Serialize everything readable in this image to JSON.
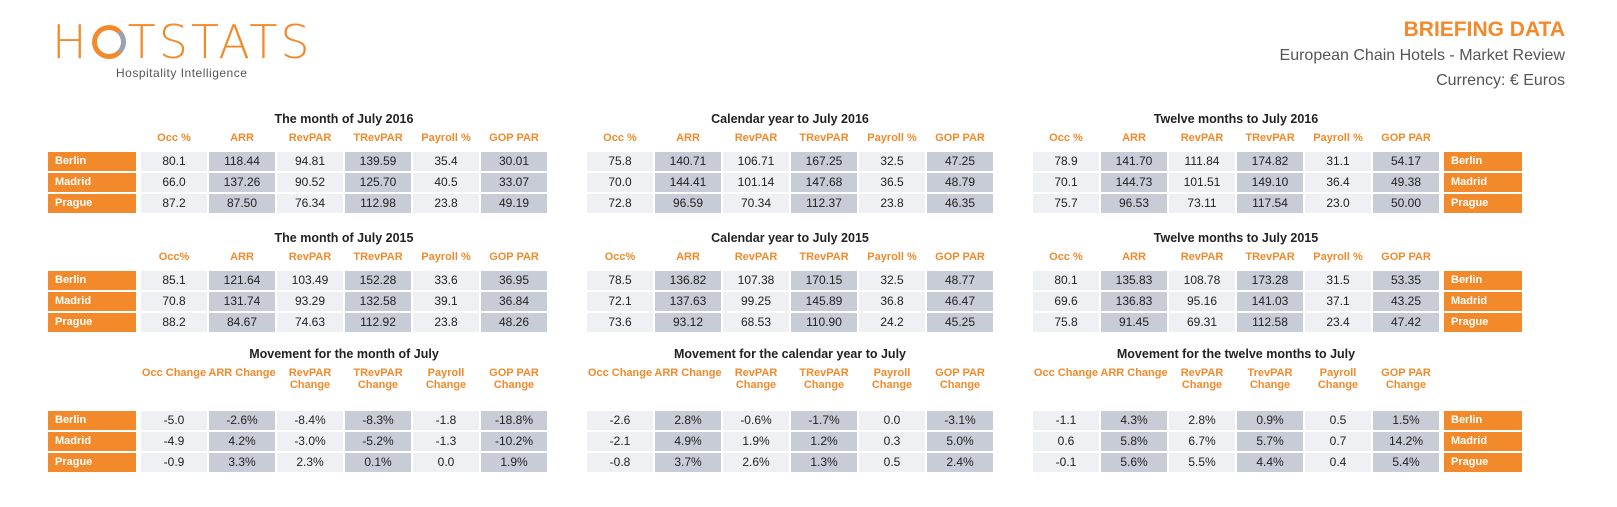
{
  "logo": {
    "name": "HOTSTATS",
    "tagline": "Hospitality Intelligence"
  },
  "header": {
    "title": "BRIEFING DATA",
    "subtitle": "European Chain Hotels - Market Review",
    "currency": "Currency: € Euros"
  },
  "colors": {
    "accent": "#f28a2b",
    "cell_light": "#eef0f4",
    "cell_dark": "#c7ccd6"
  },
  "groups": [
    {
      "tables": [
        {
          "title": "The month of July 2016",
          "columns": [
            "Occ %",
            "ARR",
            "RevPAR",
            "TRevPAR",
            "Payroll %",
            "GOP PAR"
          ],
          "row_labels": [
            "Berlin",
            "Madrid",
            "Prague"
          ],
          "rows": [
            [
              "80.1",
              "118.44",
              "94.81",
              "139.59",
              "35.4",
              "30.01"
            ],
            [
              "66.0",
              "137.26",
              "90.52",
              "125.70",
              "40.5",
              "33.07"
            ],
            [
              "87.2",
              "87.50",
              "76.34",
              "112.98",
              "23.8",
              "49.19"
            ]
          ]
        },
        {
          "title": "Calendar year to July 2016",
          "columns": [
            "Occ %",
            "ARR",
            "RevPAR",
            "TRevPAR",
            "Payroll %",
            "GOP PAR"
          ],
          "row_labels": [],
          "rows": [
            [
              "75.8",
              "140.71",
              "106.71",
              "167.25",
              "32.5",
              "47.25"
            ],
            [
              "70.0",
              "144.41",
              "101.14",
              "147.68",
              "36.5",
              "48.79"
            ],
            [
              "72.8",
              "96.59",
              "70.34",
              "112.37",
              "23.8",
              "46.35"
            ]
          ]
        },
        {
          "title": "Twelve months to July 2016",
          "columns": [
            "Occ %",
            "ARR",
            "RevPAR",
            "TRevPAR",
            "Payroll %",
            "GOP PAR"
          ],
          "row_labels": [
            "Berlin",
            "Madrid",
            "Prague"
          ],
          "rows": [
            [
              "78.9",
              "141.70",
              "111.84",
              "174.82",
              "31.1",
              "54.17"
            ],
            [
              "70.1",
              "144.73",
              "101.51",
              "149.10",
              "36.4",
              "49.38"
            ],
            [
              "75.7",
              "96.53",
              "73.11",
              "117.54",
              "23.0",
              "50.00"
            ]
          ]
        }
      ]
    },
    {
      "tables": [
        {
          "title": "The month of July 2015",
          "columns": [
            "Occ%",
            "ARR",
            "RevPAR",
            "TRevPAR",
            "Payroll %",
            "GOP PAR"
          ],
          "row_labels": [
            "Berlin",
            "Madrid",
            "Prague"
          ],
          "rows": [
            [
              "85.1",
              "121.64",
              "103.49",
              "152.28",
              "33.6",
              "36.95"
            ],
            [
              "70.8",
              "131.74",
              "93.29",
              "132.58",
              "39.1",
              "36.84"
            ],
            [
              "88.2",
              "84.67",
              "74.63",
              "112.92",
              "23.8",
              "48.26"
            ]
          ]
        },
        {
          "title": "Calendar year to July 2015",
          "columns": [
            "Occ%",
            "ARR",
            "RevPAR",
            "TRevPAR",
            "Payroll %",
            "GOP PAR"
          ],
          "row_labels": [],
          "rows": [
            [
              "78.5",
              "136.82",
              "107.38",
              "170.15",
              "32.5",
              "48.77"
            ],
            [
              "72.1",
              "137.63",
              "99.25",
              "145.89",
              "36.8",
              "46.47"
            ],
            [
              "73.6",
              "93.12",
              "68.53",
              "110.90",
              "24.2",
              "45.25"
            ]
          ]
        },
        {
          "title": "Twelve months to July 2015",
          "columns": [
            "Occ %",
            "ARR",
            "RevPAR",
            "TRevPAR",
            "Payroll %",
            "GOP PAR"
          ],
          "row_labels": [
            "Berlin",
            "Madrid",
            "Prague"
          ],
          "rows": [
            [
              "80.1",
              "135.83",
              "108.78",
              "173.28",
              "31.5",
              "53.35"
            ],
            [
              "69.6",
              "136.83",
              "95.16",
              "141.03",
              "37.1",
              "43.25"
            ],
            [
              "75.8",
              "91.45",
              "69.31",
              "112.58",
              "23.4",
              "47.42"
            ]
          ]
        }
      ]
    },
    {
      "tables": [
        {
          "title": "Movement for the month of July",
          "columns": [
            "Occ Change",
            "ARR Change",
            "RevPAR Change",
            "TRevPAR Change",
            "Payroll Change",
            "GOP PAR Change"
          ],
          "row_labels": [
            "Berlin",
            "Madrid",
            "Prague"
          ],
          "rows": [
            [
              "-5.0",
              "-2.6%",
              "-8.4%",
              "-8.3%",
              "-1.8",
              "-18.8%"
            ],
            [
              "-4.9",
              "4.2%",
              "-3.0%",
              "-5.2%",
              "-1.3",
              "-10.2%"
            ],
            [
              "-0.9",
              "3.3%",
              "2.3%",
              "0.1%",
              "0.0",
              "1.9%"
            ]
          ]
        },
        {
          "title": "Movement for the calendar year to July",
          "columns": [
            "Occ Change",
            "ARR Change",
            "RevPAR Change",
            "TRevPAR Change",
            "Payroll Change",
            "GOP PAR Change"
          ],
          "row_labels": [],
          "rows": [
            [
              "-2.6",
              "2.8%",
              "-0.6%",
              "-1.7%",
              "0.0",
              "-3.1%"
            ],
            [
              "-2.1",
              "4.9%",
              "1.9%",
              "1.2%",
              "0.3",
              "5.0%"
            ],
            [
              "-0.8",
              "3.7%",
              "2.6%",
              "1.3%",
              "0.5",
              "2.4%"
            ]
          ]
        },
        {
          "title": "Movement for the twelve months to July",
          "columns": [
            "Occ Change",
            "ARR Change",
            "RevPAR Change",
            "TrevPAR Change",
            "Payroll Change",
            "GOP PAR Change"
          ],
          "row_labels": [
            "Berlin",
            "Madrid",
            "Prague"
          ],
          "rows": [
            [
              "-1.1",
              "4.3%",
              "2.8%",
              "0.9%",
              "0.5",
              "1.5%"
            ],
            [
              "0.6",
              "5.8%",
              "6.7%",
              "5.7%",
              "0.7",
              "14.2%"
            ],
            [
              "-0.1",
              "5.6%",
              "5.5%",
              "4.4%",
              "0.4",
              "5.4%"
            ]
          ]
        }
      ]
    }
  ]
}
